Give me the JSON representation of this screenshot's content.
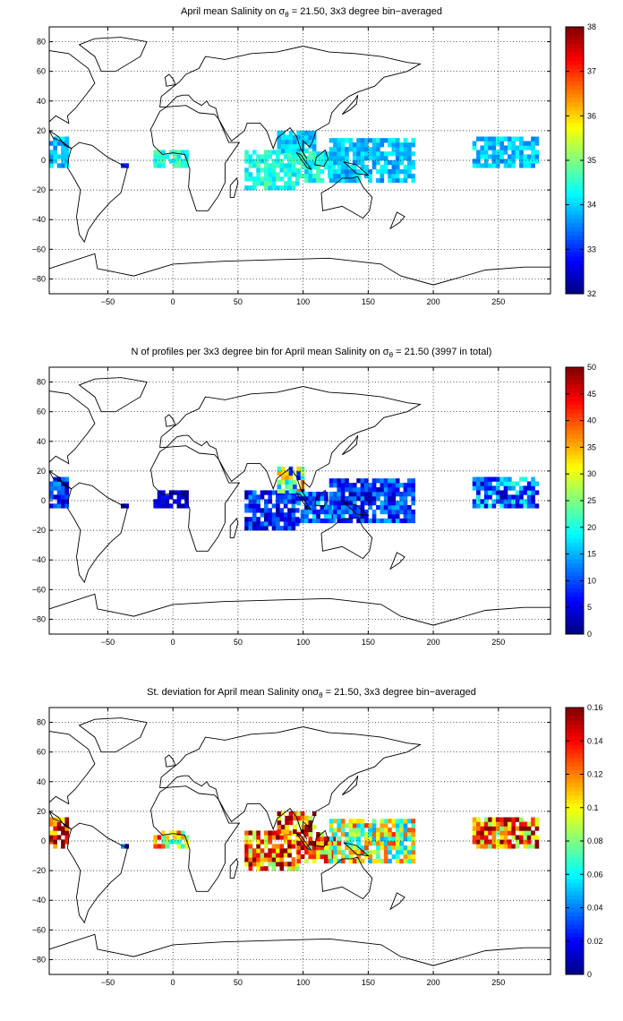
{
  "colors": {
    "land_outline": "#000000",
    "grid": "#000000",
    "colormap": "jet"
  },
  "axes": {
    "x_ticks": [
      -50,
      0,
      50,
      100,
      150,
      200,
      250
    ],
    "y_ticks": [
      80,
      60,
      40,
      20,
      0,
      -20,
      -40,
      -60,
      -80
    ],
    "xlim": [
      -95,
      290
    ],
    "ylim": [
      -90,
      90
    ]
  },
  "panels": [
    {
      "title_pre": "April mean Salinity on σ",
      "title_sub": "θ",
      "title_post": " = 21.50, 3x3 degree bin−averaged",
      "colorbar_ticks": [
        "38",
        "37",
        "36",
        "35",
        "34",
        "33",
        "32"
      ],
      "clim": [
        32,
        38
      ]
    },
    {
      "title_pre": "N of profiles per 3x3 degree bin for April mean Salinity on σ",
      "title_sub": "θ",
      "title_post": " = 21.50 (3997 in total)",
      "colorbar_ticks": [
        "50",
        "45",
        "40",
        "35",
        "30",
        "25",
        "20",
        "15",
        "10",
        "5",
        "0"
      ],
      "clim": [
        0,
        50
      ]
    },
    {
      "title_pre": "St. deviation for April mean Salinity onσ",
      "title_sub": "θ",
      "title_post": " = 21.50, 3x3 degree bin−averaged",
      "colorbar_ticks": [
        "0.16",
        "0.14",
        "0.12",
        "0.1",
        "0.08",
        "0.06",
        "0.04",
        "0.02",
        "0"
      ],
      "clim": [
        0,
        0.16
      ]
    }
  ],
  "chart_data": [
    {
      "type": "heatmap",
      "title": "April mean Salinity on σθ = 21.50, 3x3 degree bin−averaged",
      "xlim": [
        -95,
        290
      ],
      "ylim": [
        -90,
        90
      ],
      "clim": [
        32,
        38
      ],
      "regions": [
        {
          "lon": [
            -95,
            -80
          ],
          "lat": [
            -5,
            15
          ],
          "value": 33.9
        },
        {
          "lon": [
            -40,
            -35
          ],
          "lat": [
            -5,
            -2
          ],
          "value": 33.0
        },
        {
          "lon": [
            -15,
            10
          ],
          "lat": [
            -5,
            5
          ],
          "value": 34.5
        },
        {
          "lon": [
            55,
            95
          ],
          "lat": [
            -20,
            5
          ],
          "value": 34.4
        },
        {
          "lon": [
            80,
            110
          ],
          "lat": [
            5,
            20
          ],
          "value": 34.0
        },
        {
          "lon": [
            95,
            125
          ],
          "lat": [
            -15,
            5
          ],
          "value": 34.3
        },
        {
          "lon": [
            120,
            185
          ],
          "lat": [
            -15,
            15
          ],
          "value": 33.9
        },
        {
          "lon": [
            230,
            280
          ],
          "lat": [
            -5,
            15
          ],
          "value": 33.9
        }
      ]
    },
    {
      "type": "heatmap",
      "title": "N of profiles per 3x3 degree bin for April mean Salinity on σθ = 21.50 (3997 in total)",
      "xlim": [
        -95,
        290
      ],
      "ylim": [
        -90,
        90
      ],
      "clim": [
        0,
        50
      ],
      "total": 3997,
      "regions": [
        {
          "lon": [
            -95,
            -80
          ],
          "lat": [
            -5,
            15
          ],
          "value": 8
        },
        {
          "lon": [
            -40,
            -35
          ],
          "lat": [
            -5,
            -2
          ],
          "value": 2
        },
        {
          "lon": [
            -15,
            10
          ],
          "lat": [
            -5,
            5
          ],
          "value": 4
        },
        {
          "lon": [
            55,
            95
          ],
          "lat": [
            -20,
            5
          ],
          "value": 8
        },
        {
          "lon": [
            80,
            100
          ],
          "lat": [
            5,
            22
          ],
          "value": 22
        },
        {
          "lon": [
            95,
            125
          ],
          "lat": [
            -15,
            5
          ],
          "value": 10
        },
        {
          "lon": [
            120,
            185
          ],
          "lat": [
            -15,
            15
          ],
          "value": 9
        },
        {
          "lon": [
            230,
            280
          ],
          "lat": [
            -5,
            15
          ],
          "value": 12
        }
      ]
    },
    {
      "type": "heatmap",
      "title": "St. deviation for April mean Salinity onσθ = 21.50, 3x3 degree bin−averaged",
      "xlim": [
        -95,
        290
      ],
      "ylim": [
        -90,
        90
      ],
      "clim": [
        0,
        0.16
      ],
      "regions": [
        {
          "lon": [
            -95,
            -80
          ],
          "lat": [
            -5,
            15
          ],
          "value": 0.14
        },
        {
          "lon": [
            -40,
            -35
          ],
          "lat": [
            -5,
            -2
          ],
          "value": 0.01
        },
        {
          "lon": [
            -15,
            10
          ],
          "lat": [
            -5,
            5
          ],
          "value": 0.1
        },
        {
          "lon": [
            55,
            95
          ],
          "lat": [
            -20,
            5
          ],
          "value": 0.12
        },
        {
          "lon": [
            80,
            110
          ],
          "lat": [
            5,
            20
          ],
          "value": 0.13
        },
        {
          "lon": [
            95,
            125
          ],
          "lat": [
            -15,
            5
          ],
          "value": 0.12
        },
        {
          "lon": [
            120,
            185
          ],
          "lat": [
            -15,
            15
          ],
          "value": 0.09
        },
        {
          "lon": [
            230,
            280
          ],
          "lat": [
            -5,
            15
          ],
          "value": 0.12
        }
      ]
    }
  ]
}
